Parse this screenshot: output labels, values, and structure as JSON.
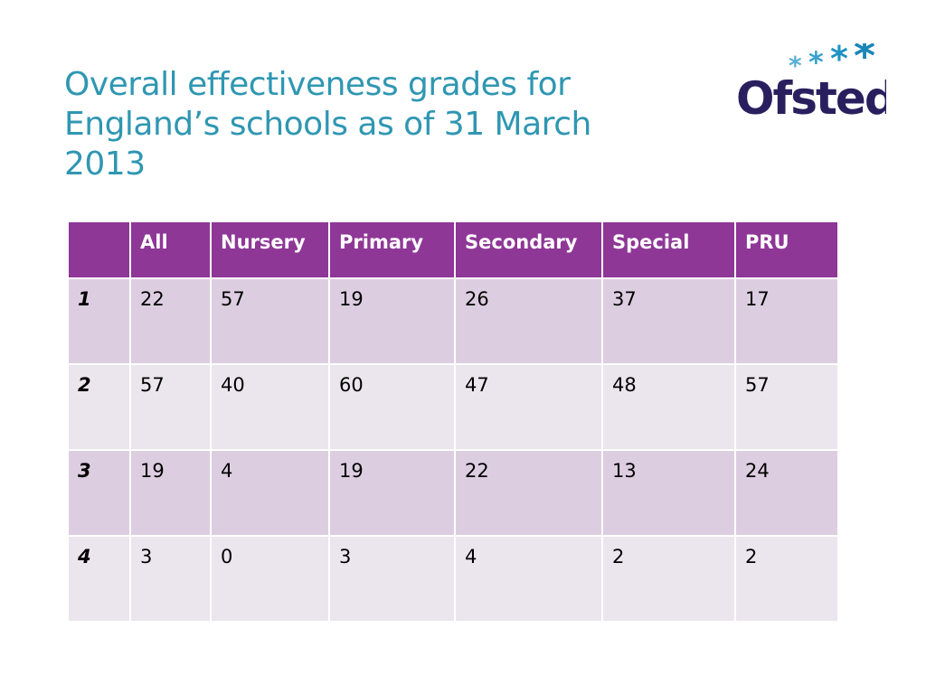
{
  "title": "Overall effectiveness grades for England’s schools as of 31 March 2013",
  "logo": "Ofsted",
  "table": {
    "header": [
      "All",
      "Nursery",
      "Primary",
      "Secondary",
      "Special",
      "PRU"
    ],
    "rows": [
      {
        "label": "1",
        "values": [
          22,
          57,
          19,
          26,
          37,
          17
        ]
      },
      {
        "label": "2",
        "values": [
          57,
          40,
          60,
          47,
          48,
          57
        ]
      },
      {
        "label": "3",
        "values": [
          19,
          4,
          19,
          22,
          13,
          24
        ]
      },
      {
        "label": "4",
        "values": [
          3,
          0,
          3,
          4,
          2,
          2
        ]
      }
    ]
  }
}
